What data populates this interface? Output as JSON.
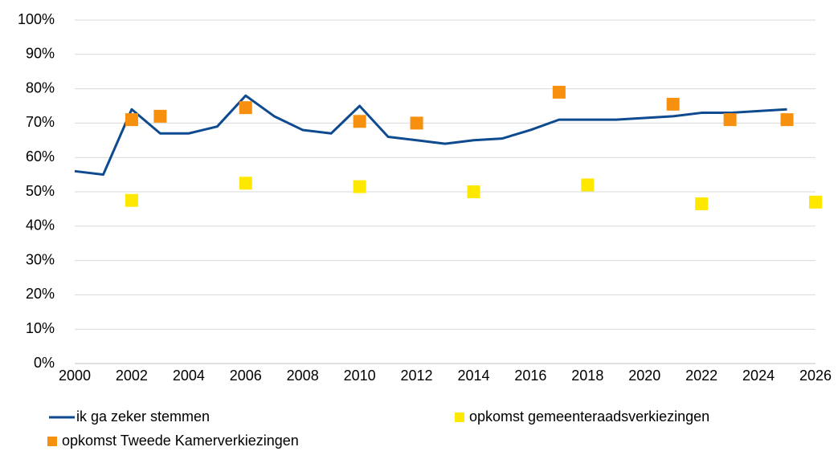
{
  "chart_data": {
    "type": "line",
    "xlim": [
      2000,
      2026
    ],
    "xticks": [
      2000,
      2002,
      2004,
      2006,
      2008,
      2010,
      2012,
      2014,
      2016,
      2018,
      2020,
      2022,
      2024,
      2026
    ],
    "ylim": [
      0,
      100
    ],
    "yticks": [
      {
        "value": 0,
        "label": "0%"
      },
      {
        "value": 10,
        "label": "10%"
      },
      {
        "value": 20,
        "label": "20%"
      },
      {
        "value": 30,
        "label": "30%"
      },
      {
        "value": 40,
        "label": "40%"
      },
      {
        "value": 50,
        "label": "50%"
      },
      {
        "value": 60,
        "label": "60%"
      },
      {
        "value": 70,
        "label": "70%"
      },
      {
        "value": 80,
        "label": "80%"
      },
      {
        "value": 90,
        "label": "90%"
      },
      {
        "value": 100,
        "label": "100%"
      }
    ],
    "grid": true,
    "series": [
      {
        "name": "ik ga zeker stemmen",
        "type": "line",
        "color": "#0e4a8f",
        "x": [
          2000,
          2001,
          2002,
          2003,
          2004,
          2005,
          2006,
          2007,
          2008,
          2009,
          2010,
          2011,
          2012,
          2013,
          2014,
          2015,
          2016,
          2017,
          2018,
          2019,
          2020,
          2021,
          2022,
          2023,
          2024,
          2025
        ],
        "values": [
          56,
          55,
          74,
          67,
          67,
          69,
          78,
          72,
          68,
          67,
          75,
          66,
          65,
          64,
          65,
          65.5,
          68,
          71,
          71,
          71,
          71.5,
          72,
          73,
          73,
          73.5,
          74
        ]
      },
      {
        "name": "opkomst gemeenteraadsverkiezingen",
        "type": "scatter",
        "color": "#ffe800",
        "x": [
          2002,
          2006,
          2010,
          2014,
          2018,
          2022,
          2026
        ],
        "values": [
          47.5,
          52.5,
          51.5,
          50,
          52,
          46.5,
          47
        ]
      },
      {
        "name": "opkomst Tweede Kamerverkiezingen",
        "type": "scatter",
        "color": "#f7900f",
        "x": [
          2002,
          2003,
          2006,
          2010,
          2012,
          2017,
          2021,
          2023,
          2025
        ],
        "values": [
          71,
          72,
          74.5,
          70.5,
          70,
          79,
          75.5,
          71,
          71
        ]
      }
    ]
  }
}
